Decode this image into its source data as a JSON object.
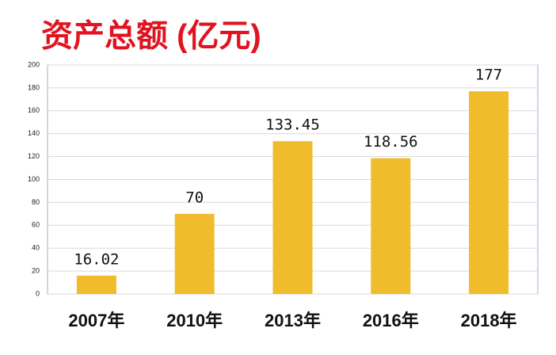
{
  "chart_data": {
    "type": "bar",
    "title": "资产总额 (亿元)",
    "categories": [
      "2007年",
      "2010年",
      "2013年",
      "2016年",
      "2018年"
    ],
    "values": [
      16.02,
      70,
      133.45,
      118.56,
      177
    ],
    "color": "#f0bc2c",
    "ylim": [
      0,
      200
    ],
    "yticks": [
      0,
      20,
      40,
      60,
      80,
      100,
      120,
      140,
      160,
      180,
      200
    ],
    "grid": true
  }
}
